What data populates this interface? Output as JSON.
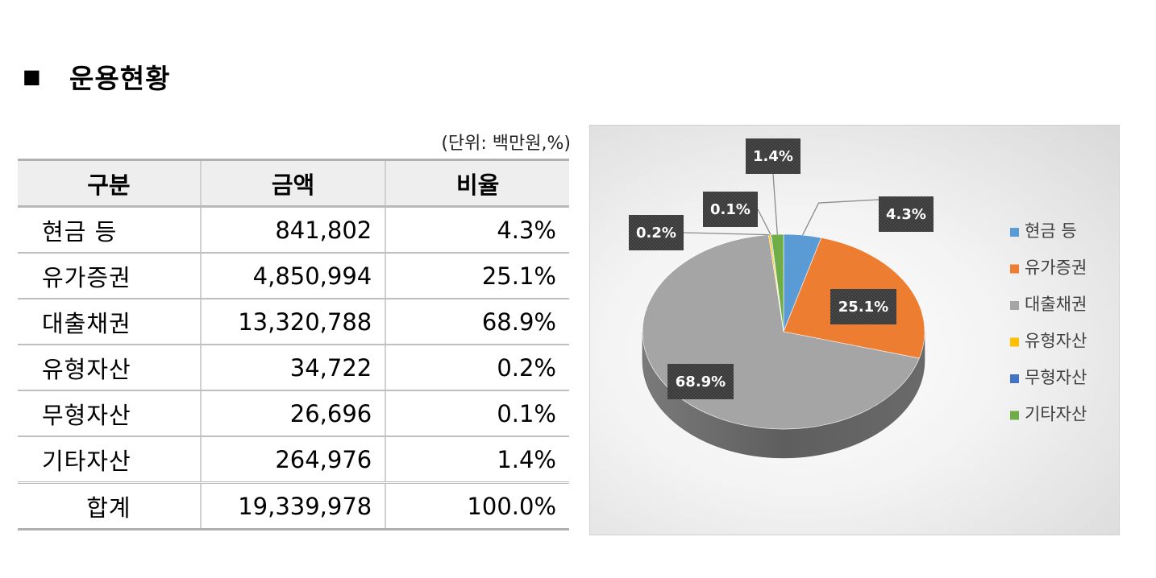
{
  "heading": {
    "bullet": "■",
    "title": "운용현황"
  },
  "unit_note": "(단위: 백만원,%)",
  "table": {
    "headers": [
      "구분",
      "금액",
      "비율"
    ],
    "rows": [
      {
        "category": "현금 등",
        "amount": "841,802",
        "ratio": "4.3%"
      },
      {
        "category": "유가증권",
        "amount": "4,850,994",
        "ratio": "25.1%"
      },
      {
        "category": "대출채권",
        "amount": "13,320,788",
        "ratio": "68.9%"
      },
      {
        "category": "유형자산",
        "amount": "34,722",
        "ratio": "0.2%"
      },
      {
        "category": "무형자산",
        "amount": "26,696",
        "ratio": "0.1%"
      },
      {
        "category": "기타자산",
        "amount": "264,976",
        "ratio": "1.4%"
      }
    ],
    "total": {
      "category": "합계",
      "amount": "19,339,978",
      "ratio": "100.0%"
    }
  },
  "chart_data": {
    "type": "pie",
    "categories": [
      "현금 등",
      "유가증권",
      "대출채권",
      "유형자산",
      "무형자산",
      "기타자산"
    ],
    "values": [
      4.3,
      25.1,
      68.9,
      0.2,
      0.1,
      1.4
    ],
    "labels": [
      "4.3%",
      "25.1%",
      "68.9%",
      "0.2%",
      "0.1%",
      "1.4%"
    ],
    "colors": [
      "#5b9bd5",
      "#ed7d31",
      "#a5a5a5",
      "#ffc000",
      "#4472c4",
      "#70ad47"
    ],
    "legend_position": "right",
    "style": "3d-pie"
  }
}
